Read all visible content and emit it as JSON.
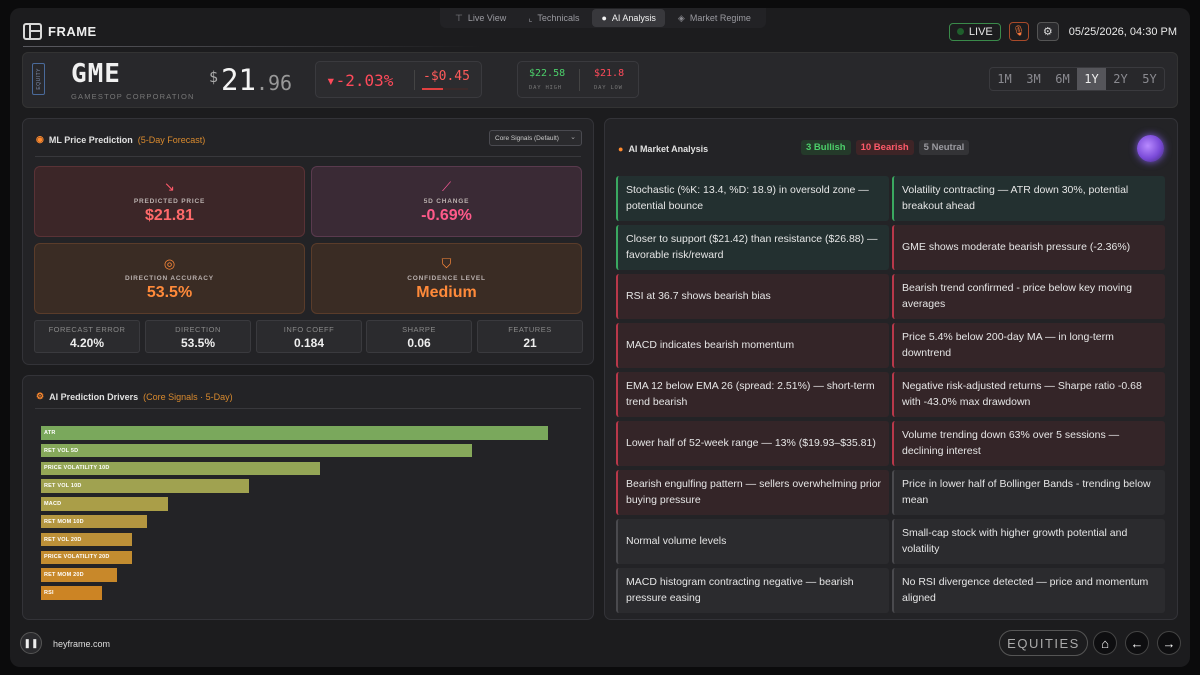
{
  "nav": {
    "tabs": [
      {
        "label": "Live View",
        "icon": "antenna-icon"
      },
      {
        "label": "Technicals",
        "icon": "chart-icon"
      },
      {
        "label": "AI Analysis",
        "icon": "brain-icon"
      },
      {
        "label": "Market Regime",
        "icon": "layers-icon"
      }
    ],
    "active_tab": "AI Analysis"
  },
  "brand": {
    "name": "FRAME"
  },
  "header": {
    "live_label": "LIVE",
    "datetime": "05/25/2026, 04:30 PM"
  },
  "ticker": {
    "tag": "EQUITY",
    "symbol": "GME",
    "company": "GAMESTOP CORPORATION",
    "currency": "$",
    "price_whole": "21",
    "price_frac": ".96",
    "change_pct": "▾-2.03%",
    "change_abs": "-$0.45",
    "day_high": "$22.58",
    "day_high_label": "DAY HIGH",
    "day_low": "$21.8",
    "day_low_label": "DAY LOW",
    "periods": [
      "1M",
      "3M",
      "6M",
      "1Y",
      "2Y",
      "5Y"
    ],
    "active_period": "1Y",
    "colors": {
      "up": "#4ccf6a",
      "down": "#ff4a5a"
    }
  },
  "ml_panel": {
    "title": "ML Price Prediction",
    "subtitle": "(5-Day Forecast)",
    "select_value": "Core Signals (Default)",
    "cards": [
      {
        "label": "PREDICTED PRICE",
        "value": "$21.81",
        "icon": "trend-down-icon",
        "color": "#ff6a6a"
      },
      {
        "label": "5D CHANGE",
        "value": "-0.69%",
        "icon": "line-chart-icon",
        "color": "#ff5a8a"
      },
      {
        "label": "DIRECTION ACCURACY",
        "value": "53.5%",
        "icon": "target-icon",
        "color": "#ff8a3a"
      },
      {
        "label": "CONFIDENCE LEVEL",
        "value": "Medium",
        "icon": "shield-icon",
        "color": "#ff8a3a"
      }
    ],
    "stats": [
      {
        "label": "FORECAST ERROR",
        "value": "4.20%"
      },
      {
        "label": "DIRECTION",
        "value": "53.5%"
      },
      {
        "label": "INFO COEFF",
        "value": "0.184"
      },
      {
        "label": "SHARPE",
        "value": "0.06"
      },
      {
        "label": "FEATURES",
        "value": "21"
      }
    ]
  },
  "drivers_panel": {
    "title": "AI Prediction Drivers",
    "subtitle": "(Core Signals · 5-Day)",
    "items": [
      {
        "label": "ATR",
        "value": 1.0,
        "color": "#7aa85c"
      },
      {
        "label": "RET VOL 5D",
        "value": 0.85,
        "color": "#86a85a"
      },
      {
        "label": "PRICE VOLATILITY 10D",
        "value": 0.55,
        "color": "#94a656"
      },
      {
        "label": "RET VOL 10D",
        "value": 0.41,
        "color": "#a0a250"
      },
      {
        "label": "MACD",
        "value": 0.25,
        "color": "#aa9e48"
      },
      {
        "label": "RET MOM 10D",
        "value": 0.21,
        "color": "#b49640"
      },
      {
        "label": "RET VOL 20D",
        "value": 0.18,
        "color": "#bc9038"
      },
      {
        "label": "PRICE VOLATILITY 20D",
        "value": 0.18,
        "color": "#c28c30"
      },
      {
        "label": "RET MOM 20D",
        "value": 0.15,
        "color": "#c8882a"
      },
      {
        "label": "RSI",
        "value": 0.12,
        "color": "#cc8424"
      }
    ]
  },
  "ai_panel": {
    "title": "AI Market Analysis",
    "bullish": "3 Bullish",
    "bearish": "10 Bearish",
    "neutral": "5 Neutral",
    "signals": [
      {
        "text": "Stochastic (%K: 13.4, %D: 18.9) in oversold zone — potential bounce",
        "type": "bull"
      },
      {
        "text": "Volatility contracting — ATR down 30%, potential breakout ahead",
        "type": "bull"
      },
      {
        "text": "Closer to support ($21.42) than resistance ($26.88) — favorable risk/reward",
        "type": "bull"
      },
      {
        "text": "GME shows moderate bearish pressure (-2.36%)",
        "type": "bear"
      },
      {
        "text": "RSI at 36.7 shows bearish bias",
        "type": "bear"
      },
      {
        "text": "Bearish trend confirmed - price below key moving averages",
        "type": "bear"
      },
      {
        "text": "MACD indicates bearish momentum",
        "type": "bear"
      },
      {
        "text": "Price 5.4% below 200-day MA — in long-term downtrend",
        "type": "bear"
      },
      {
        "text": "EMA 12 below EMA 26 (spread: 2.51%) — short-term trend bearish",
        "type": "bear"
      },
      {
        "text": "Negative risk-adjusted returns — Sharpe ratio -0.68 with -43.0% max drawdown",
        "type": "bear"
      },
      {
        "text": "Lower half of 52-week range — 13% ($19.93–$35.81)",
        "type": "bear"
      },
      {
        "text": "Volume trending down 63% over 5 sessions — declining interest",
        "type": "bear"
      },
      {
        "text": "Bearish engulfing pattern — sellers overwhelming prior buying pressure",
        "type": "bear"
      },
      {
        "text": "Price in lower half of Bollinger Bands - trending below mean",
        "type": "neut"
      },
      {
        "text": "Normal volume levels",
        "type": "neut"
      },
      {
        "text": "Small-cap stock with higher growth potential and volatility",
        "type": "neut"
      },
      {
        "text": "MACD histogram contracting negative — bearish pressure easing",
        "type": "neut"
      },
      {
        "text": "No RSI divergence detected — price and momentum aligned",
        "type": "neut"
      }
    ]
  },
  "footer": {
    "site": "heyframe.com",
    "section": "EQUITIES"
  }
}
